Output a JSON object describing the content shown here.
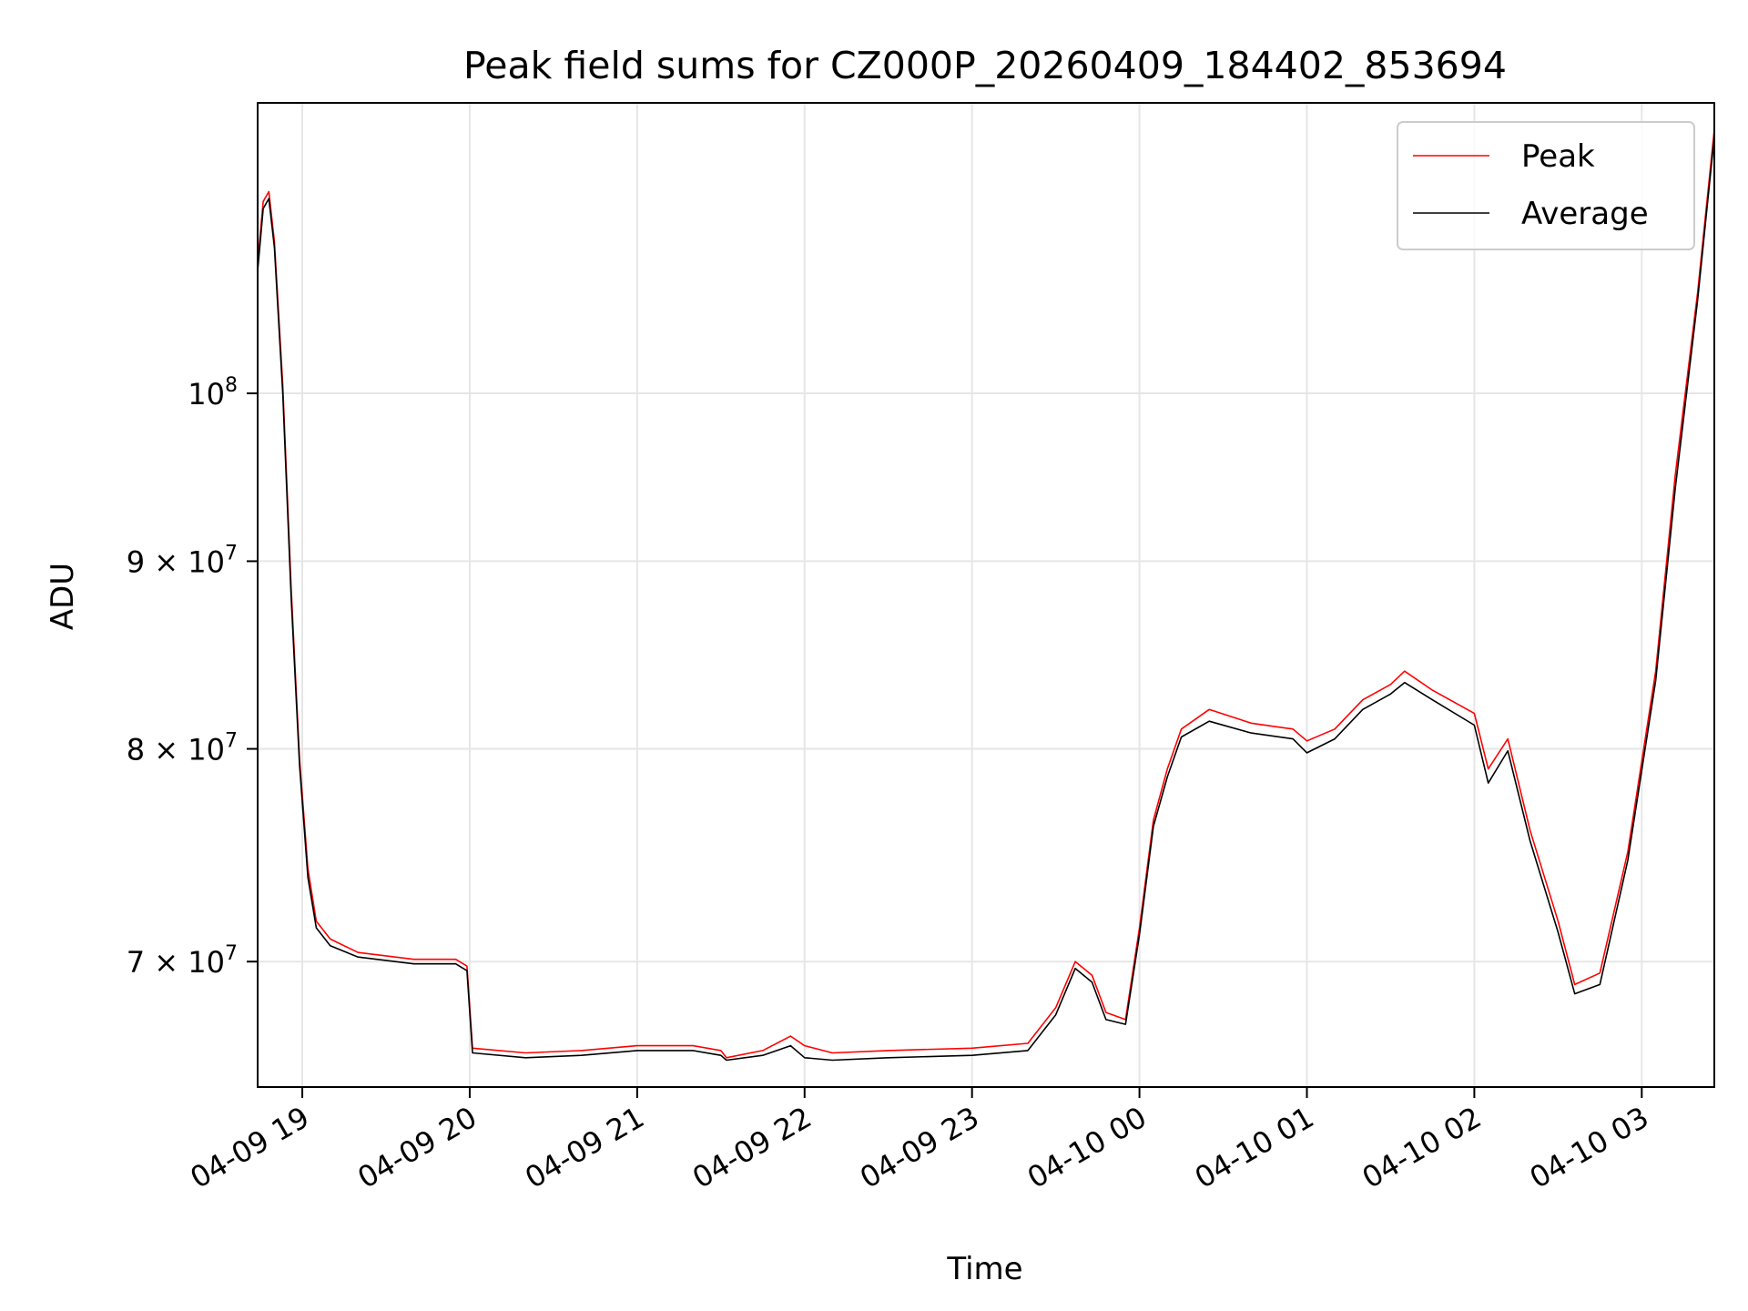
{
  "chart_data": {
    "type": "line",
    "title": "Peak field sums for CZ000P_20260409_184402_853694",
    "xlabel": "Time",
    "ylabel": "ADU",
    "y_scale": "log",
    "grid": true,
    "legend_position": "upper right",
    "x_range": [
      "2026-04-09 18:44",
      "2026-04-10 03:26"
    ],
    "ylim": [
      64700000,
      120000000
    ],
    "x_ticks": [
      {
        "value": "2026-04-09 19:00",
        "label": "04-09 19"
      },
      {
        "value": "2026-04-09 20:00",
        "label": "04-09 20"
      },
      {
        "value": "2026-04-09 21:00",
        "label": "04-09 21"
      },
      {
        "value": "2026-04-09 22:00",
        "label": "04-09 22"
      },
      {
        "value": "2026-04-09 23:00",
        "label": "04-09 23"
      },
      {
        "value": "2026-04-10 00:00",
        "label": "04-10 00"
      },
      {
        "value": "2026-04-10 01:00",
        "label": "04-10 01"
      },
      {
        "value": "2026-04-10 02:00",
        "label": "04-10 02"
      },
      {
        "value": "2026-04-10 03:00",
        "label": "04-10 03"
      }
    ],
    "y_ticks": [
      {
        "value": 70000000,
        "mantissa": "7",
        "label": "7 × 10",
        "exp": "7"
      },
      {
        "value": 80000000,
        "mantissa": "8",
        "label": "8 × 10",
        "exp": "7"
      },
      {
        "value": 90000000,
        "mantissa": "9",
        "label": "9 × 10",
        "exp": "7"
      },
      {
        "value": 100000000,
        "mantissa": "",
        "label": "10",
        "exp": "8"
      }
    ],
    "series": [
      {
        "name": "Peak",
        "color": "#ff0000",
        "points": [
          [
            "2026-04-09 18:44",
            108500000
          ],
          [
            "2026-04-09 18:46",
            112800000
          ],
          [
            "2026-04-09 18:48",
            113500000
          ],
          [
            "2026-04-09 18:50",
            110000000
          ],
          [
            "2026-04-09 18:53",
            100500000
          ],
          [
            "2026-04-09 18:56",
            88500000
          ],
          [
            "2026-04-09 18:59",
            79500000
          ],
          [
            "2026-04-09 19:02",
            74200000
          ],
          [
            "2026-04-09 19:05",
            71800000
          ],
          [
            "2026-04-09 19:10",
            71000000
          ],
          [
            "2026-04-09 19:20",
            70400000
          ],
          [
            "2026-04-09 19:40",
            70100000
          ],
          [
            "2026-04-09 19:55",
            70100000
          ],
          [
            "2026-04-09 19:59",
            69800000
          ],
          [
            "2026-04-09 20:01",
            66300000
          ],
          [
            "2026-04-09 20:20",
            66100000
          ],
          [
            "2026-04-09 20:40",
            66200000
          ],
          [
            "2026-04-09 21:00",
            66400000
          ],
          [
            "2026-04-09 21:20",
            66400000
          ],
          [
            "2026-04-09 21:30",
            66200000
          ],
          [
            "2026-04-09 21:32",
            65900000
          ],
          [
            "2026-04-09 21:45",
            66200000
          ],
          [
            "2026-04-09 21:55",
            66800000
          ],
          [
            "2026-04-09 22:00",
            66400000
          ],
          [
            "2026-04-09 22:10",
            66100000
          ],
          [
            "2026-04-09 22:30",
            66200000
          ],
          [
            "2026-04-09 23:00",
            66300000
          ],
          [
            "2026-04-09 23:20",
            66500000
          ],
          [
            "2026-04-09 23:30",
            68000000
          ],
          [
            "2026-04-09 23:37",
            70000000
          ],
          [
            "2026-04-09 23:43",
            69400000
          ],
          [
            "2026-04-09 23:48",
            67800000
          ],
          [
            "2026-04-09 23:55",
            67500000
          ],
          [
            "2026-04-10 00:00",
            71500000
          ],
          [
            "2026-04-10 00:05",
            76500000
          ],
          [
            "2026-04-10 00:10",
            79000000
          ],
          [
            "2026-04-10 00:15",
            81000000
          ],
          [
            "2026-04-10 00:25",
            82000000
          ],
          [
            "2026-04-10 00:40",
            81300000
          ],
          [
            "2026-04-10 00:55",
            81000000
          ],
          [
            "2026-04-10 01:00",
            80400000
          ],
          [
            "2026-04-10 01:10",
            81000000
          ],
          [
            "2026-04-10 01:20",
            82500000
          ],
          [
            "2026-04-10 01:30",
            83300000
          ],
          [
            "2026-04-10 01:35",
            84000000
          ],
          [
            "2026-04-10 01:45",
            83000000
          ],
          [
            "2026-04-10 02:00",
            81800000
          ],
          [
            "2026-04-10 02:05",
            79000000
          ],
          [
            "2026-04-10 02:12",
            80500000
          ],
          [
            "2026-04-10 02:20",
            76000000
          ],
          [
            "2026-04-10 02:30",
            71800000
          ],
          [
            "2026-04-10 02:36",
            69000000
          ],
          [
            "2026-04-10 02:45",
            69500000
          ],
          [
            "2026-04-10 02:55",
            75000000
          ],
          [
            "2026-04-10 03:05",
            84000000
          ],
          [
            "2026-04-10 03:12",
            95000000
          ],
          [
            "2026-04-10 03:20",
            106500000
          ],
          [
            "2026-04-10 03:26",
            118000000
          ]
        ]
      },
      {
        "name": "Average",
        "color": "#000000",
        "points": [
          [
            "2026-04-09 18:44",
            108000000
          ],
          [
            "2026-04-09 18:46",
            112300000
          ],
          [
            "2026-04-09 18:48",
            113000000
          ],
          [
            "2026-04-09 18:50",
            109600000
          ],
          [
            "2026-04-09 18:53",
            100000000
          ],
          [
            "2026-04-09 18:56",
            88000000
          ],
          [
            "2026-04-09 18:59",
            79200000
          ],
          [
            "2026-04-09 19:02",
            73800000
          ],
          [
            "2026-04-09 19:05",
            71500000
          ],
          [
            "2026-04-09 19:10",
            70700000
          ],
          [
            "2026-04-09 19:20",
            70200000
          ],
          [
            "2026-04-09 19:40",
            69900000
          ],
          [
            "2026-04-09 19:55",
            69900000
          ],
          [
            "2026-04-09 19:59",
            69600000
          ],
          [
            "2026-04-09 20:01",
            66100000
          ],
          [
            "2026-04-09 20:20",
            65900000
          ],
          [
            "2026-04-09 20:40",
            66000000
          ],
          [
            "2026-04-09 21:00",
            66200000
          ],
          [
            "2026-04-09 21:20",
            66200000
          ],
          [
            "2026-04-09 21:30",
            66000000
          ],
          [
            "2026-04-09 21:32",
            65800000
          ],
          [
            "2026-04-09 21:45",
            66000000
          ],
          [
            "2026-04-09 21:55",
            66400000
          ],
          [
            "2026-04-09 22:00",
            65900000
          ],
          [
            "2026-04-09 22:10",
            65800000
          ],
          [
            "2026-04-09 22:30",
            65900000
          ],
          [
            "2026-04-09 23:00",
            66000000
          ],
          [
            "2026-04-09 23:20",
            66200000
          ],
          [
            "2026-04-09 23:30",
            67700000
          ],
          [
            "2026-04-09 23:37",
            69700000
          ],
          [
            "2026-04-09 23:43",
            69100000
          ],
          [
            "2026-04-09 23:48",
            67500000
          ],
          [
            "2026-04-09 23:55",
            67300000
          ],
          [
            "2026-04-10 00:00",
            71200000
          ],
          [
            "2026-04-10 00:05",
            76200000
          ],
          [
            "2026-04-10 00:10",
            78600000
          ],
          [
            "2026-04-10 00:15",
            80600000
          ],
          [
            "2026-04-10 00:25",
            81400000
          ],
          [
            "2026-04-10 00:40",
            80800000
          ],
          [
            "2026-04-10 00:55",
            80500000
          ],
          [
            "2026-04-10 01:00",
            79800000
          ],
          [
            "2026-04-10 01:10",
            80500000
          ],
          [
            "2026-04-10 01:20",
            82000000
          ],
          [
            "2026-04-10 01:30",
            82800000
          ],
          [
            "2026-04-10 01:35",
            83400000
          ],
          [
            "2026-04-10 01:45",
            82500000
          ],
          [
            "2026-04-10 02:00",
            81200000
          ],
          [
            "2026-04-10 02:05",
            78300000
          ],
          [
            "2026-04-10 02:12",
            79900000
          ],
          [
            "2026-04-10 02:20",
            75500000
          ],
          [
            "2026-04-10 02:30",
            71300000
          ],
          [
            "2026-04-10 02:36",
            68600000
          ],
          [
            "2026-04-10 02:45",
            69000000
          ],
          [
            "2026-04-10 02:55",
            74600000
          ],
          [
            "2026-04-10 03:05",
            83500000
          ],
          [
            "2026-04-10 03:12",
            94200000
          ],
          [
            "2026-04-10 03:20",
            106000000
          ],
          [
            "2026-04-10 03:26",
            117500000
          ]
        ]
      }
    ]
  }
}
